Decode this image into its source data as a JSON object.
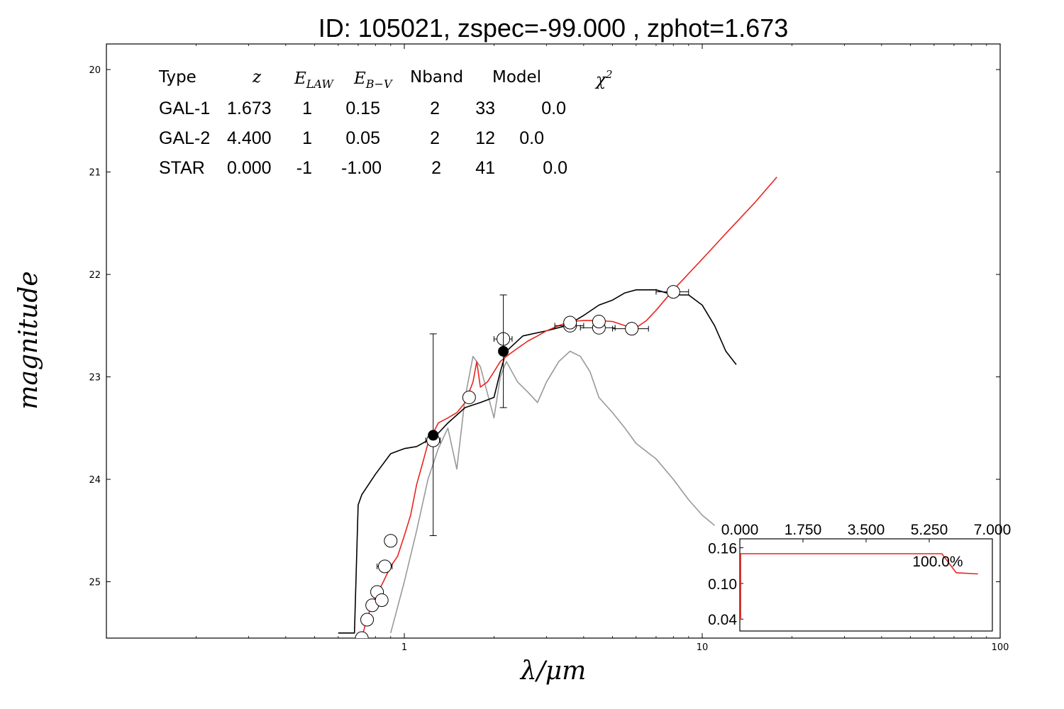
{
  "chart_data": {
    "type": "line",
    "title": "ID:  105021, zspec=-99.000 , zphot=1.673",
    "xlabel": "λ/μm",
    "ylabel": "magnitude",
    "xscale": "log",
    "xlim": [
      0.1,
      100
    ],
    "ylim": [
      25.55,
      19.75
    ],
    "x_ticks": [
      {
        "value": 1,
        "label": "1"
      },
      {
        "value": 10,
        "label": "10"
      },
      {
        "value": 100,
        "label": "100"
      }
    ],
    "y_ticks": [
      {
        "value": 20,
        "label": "20"
      },
      {
        "value": 21,
        "label": "21"
      },
      {
        "value": 22,
        "label": "22"
      },
      {
        "value": 23,
        "label": "23"
      },
      {
        "value": 24,
        "label": "24"
      },
      {
        "value": 25,
        "label": "25"
      }
    ],
    "legend_table": {
      "headers": [
        "Type",
        "z",
        "E_LAW",
        "E_B−V",
        "Nband",
        "Model",
        "χ²"
      ],
      "rows": [
        {
          "type": "GAL-1",
          "z": "1.673",
          "elaw": "1",
          "ebv": "0.15",
          "nband": "2",
          "model": "33",
          "chi2": "0.0",
          "color": "#e8251f"
        },
        {
          "type": "GAL-2",
          "z": "4.400",
          "elaw": "1",
          "ebv": "0.05",
          "nband": "2",
          "model": "12",
          "chi2": "0.0",
          "color": "#000000"
        },
        {
          "type": "STAR",
          "z": "0.000",
          "elaw": "-1",
          "ebv": "-1.00",
          "nband": "2",
          "model": "41",
          "chi2": "0.0",
          "color": "#999999"
        }
      ]
    },
    "series": [
      {
        "color": "#e8251f",
        "x": [
          0.72,
          0.75,
          0.8,
          0.85,
          0.9,
          0.95,
          1.0,
          1.05,
          1.1,
          1.15,
          1.2,
          1.3,
          1.4,
          1.5,
          1.6,
          1.7,
          1.75,
          1.8,
          1.9,
          2.0,
          2.1,
          2.2,
          2.4,
          2.6,
          2.8,
          3.0,
          3.3,
          3.6,
          4.0,
          4.5,
          5.0,
          5.5,
          6.0,
          6.5,
          7.0,
          8.0,
          10.0,
          12.0,
          15.0,
          17.8
        ],
        "y": [
          25.55,
          25.35,
          25.15,
          25.0,
          24.85,
          24.75,
          24.55,
          24.35,
          24.05,
          23.85,
          23.65,
          23.45,
          23.4,
          23.35,
          23.25,
          23.05,
          22.85,
          23.1,
          23.05,
          22.95,
          22.85,
          22.8,
          22.72,
          22.65,
          22.6,
          22.55,
          22.5,
          22.46,
          22.45,
          22.45,
          22.46,
          22.5,
          22.52,
          22.45,
          22.35,
          22.15,
          21.85,
          21.6,
          21.3,
          21.05
        ]
      },
      {
        "color": "#000000",
        "x": [
          0.6,
          0.68,
          0.7,
          0.72,
          0.8,
          0.9,
          1.0,
          1.1,
          1.2,
          1.3,
          1.4,
          1.6,
          1.8,
          2.0,
          2.1,
          2.2,
          2.5,
          3.0,
          3.5,
          4.0,
          4.5,
          5.0,
          5.5,
          6.0,
          7.0,
          8.0,
          9.0,
          10.0,
          11.0,
          12.0,
          13.0
        ],
        "y": [
          25.5,
          25.5,
          24.25,
          24.15,
          23.95,
          23.75,
          23.7,
          23.68,
          23.62,
          23.55,
          23.45,
          23.3,
          23.25,
          23.2,
          22.95,
          22.75,
          22.6,
          22.55,
          22.5,
          22.4,
          22.3,
          22.25,
          22.18,
          22.15,
          22.15,
          22.2,
          22.2,
          22.3,
          22.5,
          22.75,
          22.88
        ]
      },
      {
        "color": "#999999",
        "x": [
          0.9,
          1.0,
          1.1,
          1.2,
          1.3,
          1.4,
          1.5,
          1.6,
          1.7,
          1.8,
          2.0,
          2.1,
          2.2,
          2.4,
          2.6,
          2.8,
          3.0,
          3.3,
          3.6,
          3.9,
          4.2,
          4.5,
          5.0,
          5.5,
          6.0,
          7.0,
          8.0,
          9.0,
          10.0,
          11.0
        ],
        "y": [
          25.5,
          25.0,
          24.5,
          24.0,
          23.7,
          23.5,
          23.9,
          23.2,
          22.8,
          22.9,
          23.4,
          23.0,
          22.85,
          23.05,
          23.15,
          23.25,
          23.05,
          22.85,
          22.75,
          22.8,
          22.95,
          23.2,
          23.35,
          23.5,
          23.65,
          23.8,
          24.0,
          24.2,
          24.35,
          24.45
        ]
      }
    ],
    "observations": [
      {
        "x": 0.72,
        "y": 25.55,
        "x_lo": 0.72,
        "x_hi": 0.72,
        "y_lo": 25.55,
        "y_hi": 25.55,
        "filled": false
      },
      {
        "x": 0.75,
        "y": 25.37,
        "x_lo": 0.75,
        "x_hi": 0.75,
        "y_lo": 25.37,
        "y_hi": 25.37,
        "filled": false
      },
      {
        "x": 0.78,
        "y": 25.23,
        "x_lo": 0.78,
        "x_hi": 0.78,
        "y_lo": 25.23,
        "y_hi": 25.23,
        "filled": false
      },
      {
        "x": 0.81,
        "y": 25.1,
        "x_lo": 0.81,
        "x_hi": 0.81,
        "y_lo": 25.1,
        "y_hi": 25.1,
        "filled": false
      },
      {
        "x": 0.84,
        "y": 25.18,
        "x_lo": 0.84,
        "x_hi": 0.84,
        "y_lo": 25.18,
        "y_hi": 25.18,
        "filled": false
      },
      {
        "x": 0.86,
        "y": 24.85,
        "x_lo": 0.81,
        "x_hi": 0.91,
        "y_lo": 24.85,
        "y_hi": 24.85,
        "filled": false
      },
      {
        "x": 0.9,
        "y": 24.6,
        "x_lo": 0.87,
        "x_hi": 0.93,
        "y_lo": 24.6,
        "y_hi": 24.6,
        "filled": false
      },
      {
        "x": 1.25,
        "y": 23.62,
        "x_lo": 1.18,
        "x_hi": 1.32,
        "y_lo": 24.55,
        "y_hi": 22.58,
        "filled": false
      },
      {
        "x": 1.25,
        "y": 23.57,
        "x_lo": 1.25,
        "x_hi": 1.25,
        "y_lo": 23.57,
        "y_hi": 23.57,
        "filled": true
      },
      {
        "x": 1.65,
        "y": 23.2,
        "x_lo": 1.65,
        "x_hi": 1.65,
        "y_lo": 23.2,
        "y_hi": 23.2,
        "filled": false
      },
      {
        "x": 2.15,
        "y": 22.63,
        "x_lo": 2.0,
        "x_hi": 2.3,
        "y_lo": 22.63,
        "y_hi": 22.63,
        "filled": false
      },
      {
        "x": 2.15,
        "y": 22.75,
        "x_lo": 2.15,
        "x_hi": 2.15,
        "y_lo": 23.3,
        "y_hi": 22.2,
        "filled": true
      },
      {
        "x": 3.6,
        "y": 22.5,
        "x_lo": 3.2,
        "x_hi": 4.0,
        "y_lo": 22.5,
        "y_hi": 22.5,
        "filled": false
      },
      {
        "x": 3.6,
        "y": 22.47,
        "x_lo": 3.6,
        "x_hi": 3.6,
        "y_lo": 22.47,
        "y_hi": 22.47,
        "filled": false
      },
      {
        "x": 4.5,
        "y": 22.52,
        "x_lo": 3.9,
        "x_hi": 5.1,
        "y_lo": 22.52,
        "y_hi": 22.52,
        "filled": false
      },
      {
        "x": 4.5,
        "y": 22.46,
        "x_lo": 4.5,
        "x_hi": 4.5,
        "y_lo": 22.46,
        "y_hi": 22.46,
        "filled": false
      },
      {
        "x": 5.8,
        "y": 22.53,
        "x_lo": 5.0,
        "x_hi": 6.6,
        "y_lo": 22.53,
        "y_hi": 22.53,
        "filled": false
      },
      {
        "x": 8.0,
        "y": 22.17,
        "x_lo": 7.0,
        "x_hi": 9.0,
        "y_lo": 22.17,
        "y_hi": 22.17,
        "filled": false
      }
    ],
    "inset": {
      "type": "line",
      "xlim": [
        0,
        7
      ],
      "ylim": [
        0.02,
        0.175
      ],
      "x_ticks": [
        "0.000",
        "1.750",
        "3.500",
        "5.250",
        "7.000"
      ],
      "x_tick_values": [
        0,
        1.75,
        3.5,
        5.25,
        7
      ],
      "y_ticks": [
        "0.16",
        "0.10",
        "0.04"
      ],
      "y_tick_values": [
        0.16,
        0.1,
        0.04
      ],
      "annotation": "100.0%",
      "color": "#e8251f",
      "x": [
        0.0,
        0.02,
        0.02,
        5.6,
        6.0,
        6.6
      ],
      "y": [
        0.04,
        0.04,
        0.15,
        0.15,
        0.118,
        0.116
      ]
    }
  }
}
